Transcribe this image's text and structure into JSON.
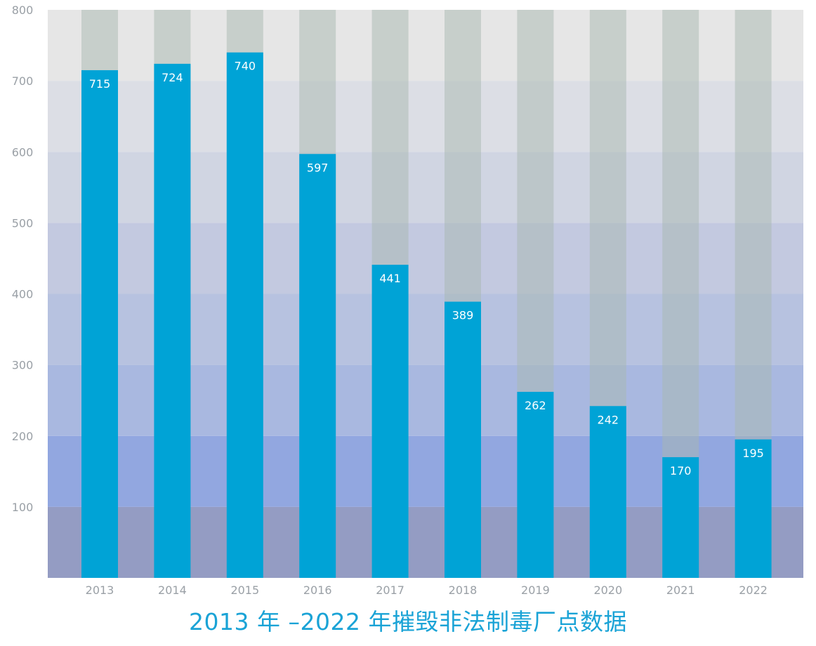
{
  "chart_data": {
    "type": "bar",
    "title": "2013 年 –2022 年摧毁非法制毒厂点数据",
    "xlabel": "",
    "ylabel": "",
    "categories": [
      "2013",
      "2014",
      "2015",
      "2016",
      "2017",
      "2018",
      "2019",
      "2020",
      "2021",
      "2022"
    ],
    "values": [
      715,
      724,
      740,
      597,
      441,
      389,
      262,
      242,
      170,
      195
    ],
    "data_labels": [
      "715",
      "724",
      "740",
      "597",
      "441",
      "389",
      "262",
      "242",
      "170",
      "195"
    ],
    "ylim": [
      0,
      800
    ],
    "yticks": [
      100,
      200,
      300,
      400,
      500,
      600,
      700,
      800
    ],
    "ytick_labels": [
      "100",
      "200",
      "300",
      "400",
      "500",
      "600",
      "700",
      "800"
    ],
    "grid": false,
    "legend": "none",
    "colors": {
      "bar": "#00a3d6",
      "bar_background_track": "#a8b8b0",
      "data_label": "#ffffff",
      "title": "#1aa3d6",
      "tick_label": "#9aa0a6",
      "band_fills": [
        "#949cc3",
        "#92a7e0",
        "#a9b8e0",
        "#b7c2e0",
        "#c3c9e0",
        "#d0d5e2",
        "#dcdee5",
        "#e6e6e6"
      ]
    }
  }
}
